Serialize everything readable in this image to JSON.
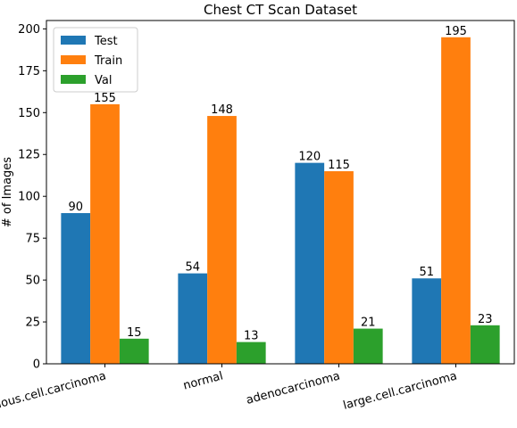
{
  "chart_data": {
    "type": "bar",
    "title": "Chest CT Scan Dataset",
    "xlabel": "",
    "ylabel": "# of Images",
    "categories": [
      "squamous.cell.carcinoma",
      "normal",
      "adenocarcinoma",
      "large.cell.carcinoma"
    ],
    "series": [
      {
        "name": "Test",
        "values": [
          90,
          54,
          120,
          51
        ],
        "color": "#1f77b4"
      },
      {
        "name": "Train",
        "values": [
          155,
          148,
          115,
          195
        ],
        "color": "#ff7f0e"
      },
      {
        "name": "Val",
        "values": [
          15,
          13,
          21,
          23
        ],
        "color": "#2ca02c"
      }
    ],
    "ylim": [
      0,
      205
    ],
    "yticks": [
      0,
      25,
      50,
      75,
      100,
      125,
      150,
      175,
      200
    ],
    "xtick_rotation_deg": 15,
    "grid": false,
    "legend_position": "top-left",
    "data_labels": true
  }
}
